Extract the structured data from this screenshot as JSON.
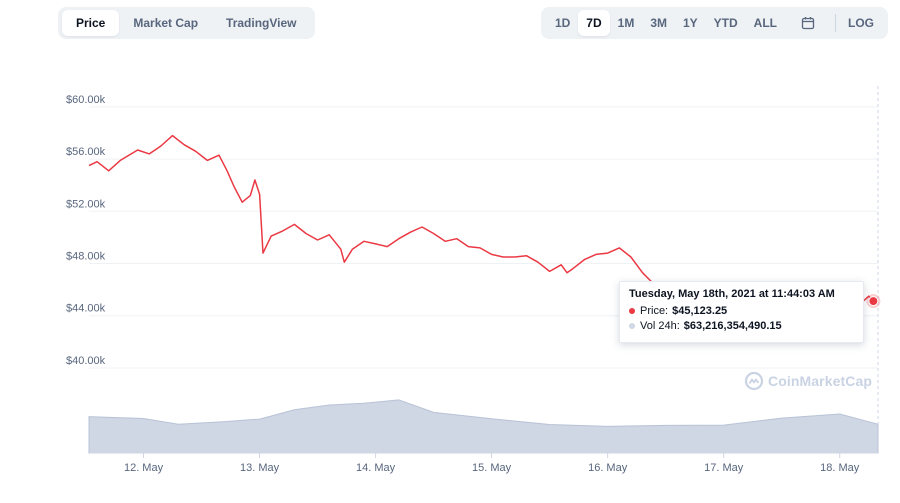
{
  "tabs": [
    {
      "label": "Price",
      "active": true
    },
    {
      "label": "Market Cap",
      "active": false
    },
    {
      "label": "TradingView",
      "active": false
    }
  ],
  "ranges": [
    {
      "label": "1D",
      "active": false
    },
    {
      "label": "7D",
      "active": true
    },
    {
      "label": "1M",
      "active": false
    },
    {
      "label": "3M",
      "active": false
    },
    {
      "label": "1Y",
      "active": false
    },
    {
      "label": "YTD",
      "active": false
    },
    {
      "label": "ALL",
      "active": false
    }
  ],
  "calendar_icon": "calendar-icon",
  "log_label": "LOG",
  "tooltip": {
    "title": "Tuesday, May 18th, 2021 at 11:44:03 AM",
    "price_label": "Price:",
    "price_value": "$45,123.25",
    "volume_label": "Vol 24h:",
    "volume_value": "$63,216,354,490.15"
  },
  "watermark": "CoinMarketCap",
  "colors": {
    "price_line": "#ea3943",
    "volume_fill": "#cfd6e4",
    "grid": "#eff2f5",
    "axis_text": "#58667e",
    "active_tab_bg": "#ffffff",
    "tab_bg": "#eff2f5"
  },
  "chart_data": {
    "type": "line",
    "x_tick_labels": [
      "12. May",
      "13. May",
      "14. May",
      "15. May",
      "16. May",
      "17. May",
      "18. May"
    ],
    "x_ticks_days": [
      1,
      2,
      3,
      4,
      5,
      6,
      7
    ],
    "x_range_days": [
      0.53,
      7.33
    ],
    "y_tick_labels": [
      "$40.00k",
      "$44.00k",
      "$48.00k",
      "$52.00k",
      "$56.00k",
      "$60.00k"
    ],
    "y_ticks": [
      40000,
      44000,
      48000,
      52000,
      56000,
      60000
    ],
    "ylim": [
      39000,
      61600
    ],
    "grid": true,
    "series": [
      {
        "kind": "price",
        "x_days": [
          0.53,
          0.6,
          0.7,
          0.8,
          0.95,
          1.05,
          1.15,
          1.25,
          1.35,
          1.45,
          1.55,
          1.65,
          1.72,
          1.78,
          1.85,
          1.92,
          1.96,
          2.0,
          2.03,
          2.1,
          2.2,
          2.3,
          2.4,
          2.5,
          2.6,
          2.7,
          2.73,
          2.8,
          2.9,
          3.0,
          3.1,
          3.2,
          3.3,
          3.4,
          3.5,
          3.6,
          3.7,
          3.8,
          3.9,
          4.0,
          4.1,
          4.2,
          4.3,
          4.4,
          4.5,
          4.6,
          4.65,
          4.7,
          4.8,
          4.9,
          5.0,
          5.1,
          5.2,
          5.3,
          5.4,
          5.5,
          5.6,
          5.7,
          5.8,
          5.9,
          6.0,
          6.1,
          6.2,
          6.3,
          6.4,
          6.5,
          6.6,
          6.7,
          6.8,
          6.9,
          7.0,
          7.1,
          7.2,
          7.25,
          7.29
        ],
        "y": [
          55500,
          55800,
          55100,
          55900,
          56700,
          56400,
          57000,
          57800,
          57100,
          56600,
          55900,
          56300,
          55100,
          53900,
          52700,
          53200,
          54400,
          53300,
          48800,
          50100,
          50500,
          51000,
          50300,
          49800,
          50200,
          49100,
          48100,
          49100,
          49700,
          49500,
          49300,
          49900,
          50400,
          50800,
          50300,
          49700,
          49900,
          49300,
          49200,
          48700,
          48500,
          48500,
          48600,
          48100,
          47400,
          47900,
          47300,
          47600,
          48300,
          48700,
          48800,
          49200,
          48500,
          47300,
          46400,
          45500,
          45000,
          44700,
          44400,
          43600,
          44000,
          44600,
          44100,
          43600,
          43000,
          43500,
          44800,
          44000,
          43100,
          44200,
          45400,
          45600,
          45100,
          45500,
          45123
        ]
      },
      {
        "kind": "volume_24h",
        "x_days": [
          0.53,
          1.0,
          1.3,
          1.7,
          2.0,
          2.3,
          2.6,
          2.9,
          3.2,
          3.5,
          4.0,
          4.5,
          5.0,
          5.5,
          6.0,
          6.5,
          7.0,
          7.33
        ],
        "relative": [
          0.47,
          0.46,
          0.4,
          0.41,
          0.46,
          0.56,
          0.64,
          0.68,
          0.7,
          0.55,
          0.44,
          0.38,
          0.37,
          0.36,
          0.38,
          0.45,
          0.52,
          0.4
        ]
      }
    ],
    "hover": {
      "x_day": 7.29,
      "y": 45123.25
    }
  }
}
